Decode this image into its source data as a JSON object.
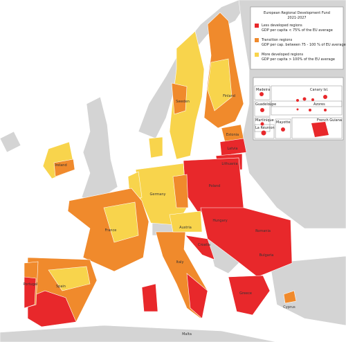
{
  "map": {
    "legend": {
      "title": [
        "European Regional Development Fund",
        "2021-2027"
      ],
      "items": [
        {
          "name": "Less developed regions",
          "description": "GDP per capita < 75% of the EU average",
          "color": "#e8282b"
        },
        {
          "name": "Transition regions",
          "description": "GDP per cap. between 75 - 100 % of EU average",
          "color": "#f08a2c"
        },
        {
          "name": "More developed regions",
          "description": "GDP per capita > 100% of the EU average",
          "color": "#f8d44c"
        }
      ]
    },
    "insets": [
      "Madeira",
      "Canary Isl.",
      "Guadeloupe",
      "Azores",
      "Martinique",
      "La Réunion",
      "Mayotte",
      "French Guiana"
    ],
    "labels": [
      "Finland",
      "Sweden",
      "Estonia",
      "Latvia",
      "Lithuania",
      "Ireland",
      "Poland",
      "Germany",
      "France",
      "Spain",
      "Portugal",
      "Italy",
      "Austria",
      "Croatia",
      "Hungary",
      "Romania",
      "Bulgaria",
      "Greece",
      "Malta",
      "Cyprus"
    ]
  }
}
